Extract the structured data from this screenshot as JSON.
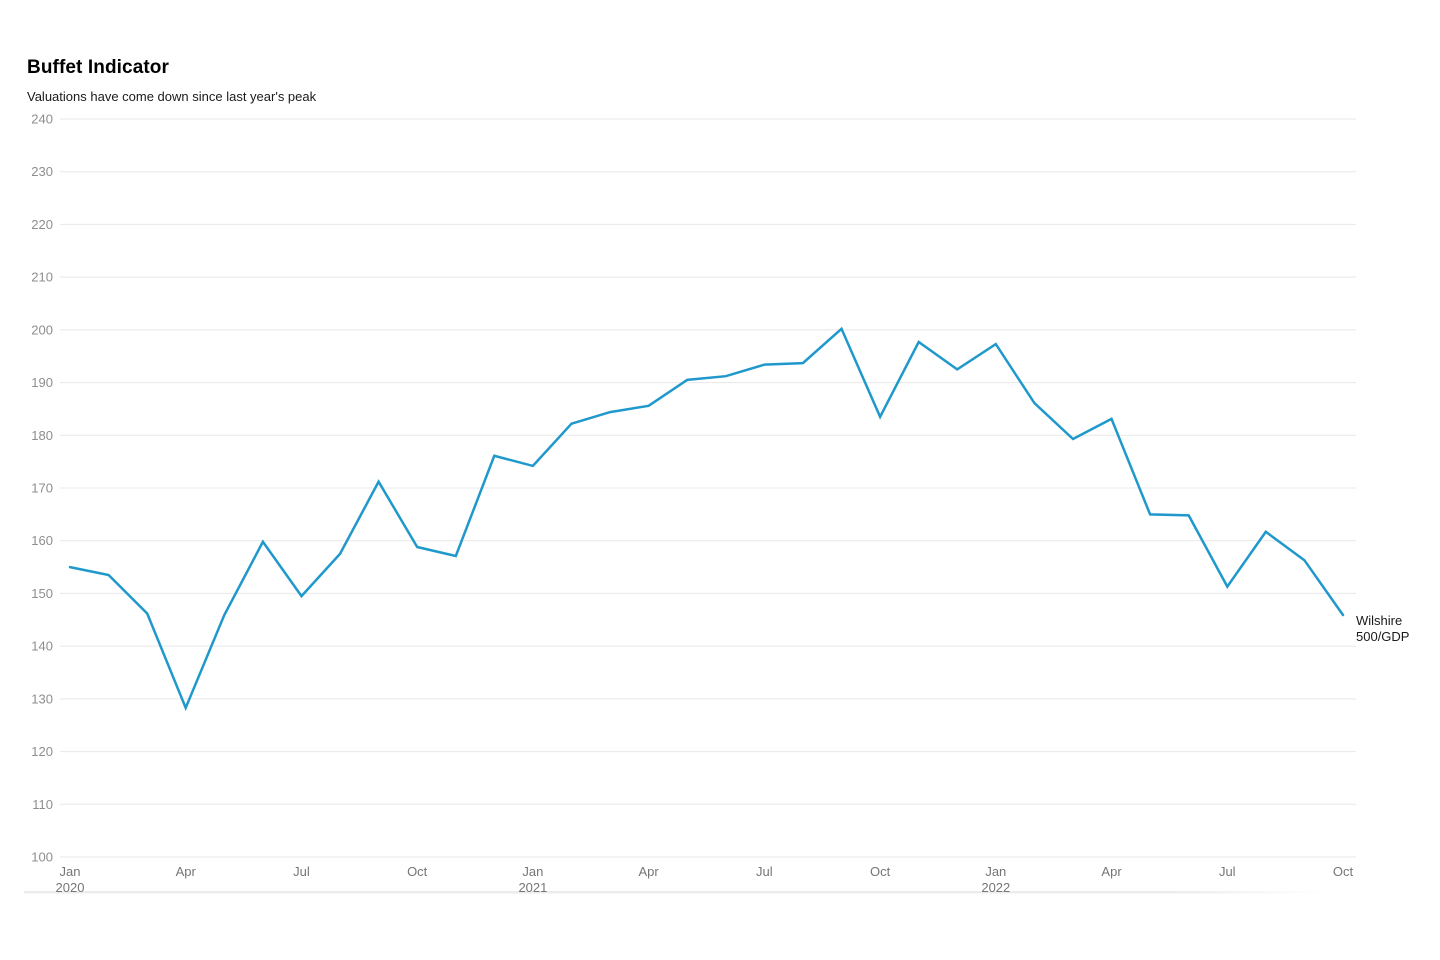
{
  "chart_data": {
    "type": "line",
    "title": "Buffet Indicator",
    "subtitle": "Valuations have come down since last year's peak",
    "x": [
      "Jan 2020",
      "Feb 2020",
      "Mar 2020",
      "Apr 2020",
      "May 2020",
      "Jun 2020",
      "Jul 2020",
      "Aug 2020",
      "Sep 2020",
      "Oct 2020",
      "Nov 2020",
      "Dec 2020",
      "Jan 2021",
      "Feb 2021",
      "Mar 2021",
      "Apr 2021",
      "May 2021",
      "Jun 2021",
      "Jul 2021",
      "Aug 2021",
      "Sep 2021",
      "Oct 2021",
      "Nov 2021",
      "Dec 2021",
      "Jan 2022",
      "Feb 2022",
      "Mar 2022",
      "Apr 2022",
      "May 2022",
      "Jun 2022",
      "Jul 2022",
      "Aug 2022",
      "Sep 2022",
      "Oct 2022"
    ],
    "series": [
      {
        "name": "Wilshire 500/GDP",
        "end_label_lines": [
          "Wilshire",
          "500/GDP"
        ],
        "color": "#1f98cb",
        "values": [
          155.0,
          153.5,
          146.2,
          128.3,
          145.9,
          159.8,
          149.5,
          157.5,
          171.2,
          158.8,
          157.1,
          176.1,
          174.2,
          182.2,
          184.4,
          185.6,
          190.5,
          191.2,
          193.4,
          193.7,
          200.2,
          183.5,
          197.7,
          192.5,
          197.3,
          186.1,
          179.3,
          183.1,
          165.0,
          164.8,
          151.3,
          161.7,
          156.3,
          145.9
        ]
      }
    ],
    "ylim": [
      100,
      240
    ],
    "y_ticks": [
      100,
      110,
      120,
      130,
      140,
      150,
      160,
      170,
      180,
      190,
      200,
      210,
      220,
      230,
      240
    ],
    "x_ticks": [
      {
        "index": 0,
        "label": "Jan",
        "year": "2020"
      },
      {
        "index": 3,
        "label": "Apr"
      },
      {
        "index": 6,
        "label": "Jul"
      },
      {
        "index": 9,
        "label": "Oct"
      },
      {
        "index": 12,
        "label": "Jan",
        "year": "2021"
      },
      {
        "index": 15,
        "label": "Apr"
      },
      {
        "index": 18,
        "label": "Jul"
      },
      {
        "index": 21,
        "label": "Oct"
      },
      {
        "index": 24,
        "label": "Jan",
        "year": "2022"
      },
      {
        "index": 27,
        "label": "Apr"
      },
      {
        "index": 30,
        "label": "Jul"
      },
      {
        "index": 33,
        "label": "Oct"
      }
    ],
    "grid": "horizontal",
    "legend_position": "line-end",
    "colors": {
      "line": "#1f98cb",
      "grid": "#e8e8e8",
      "y_tick_text": "#8e8e8e",
      "x_tick_text": "#757575",
      "title_text": "#000000",
      "subtitle_text": "#1a1a1a",
      "end_label_text": "#1a1a1a",
      "divider": "#ececec",
      "background": "#ffffff"
    }
  }
}
